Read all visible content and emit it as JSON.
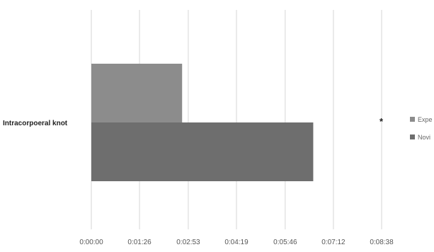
{
  "chart_data": {
    "type": "bar",
    "orientation": "horizontal",
    "title": "",
    "xlabel": "",
    "ylabel": "",
    "categories": [
      "Intracorpoeral knot"
    ],
    "x_ticks": [
      "0:00:00",
      "0:01:26",
      "0:02:53",
      "0:04:19",
      "0:05:46",
      "0:07:12",
      "0:08:38"
    ],
    "xlim": [
      "0:00:00",
      "0:08:38"
    ],
    "series": [
      {
        "name": "Expe",
        "values": [
          "0:02:42"
        ],
        "color": "#8c8c8c"
      },
      {
        "name": "Novi",
        "values": [
          "0:06:36"
        ],
        "color": "#6e6e6e"
      }
    ],
    "grid": "vertical",
    "legend": "right",
    "annotation": "*"
  }
}
